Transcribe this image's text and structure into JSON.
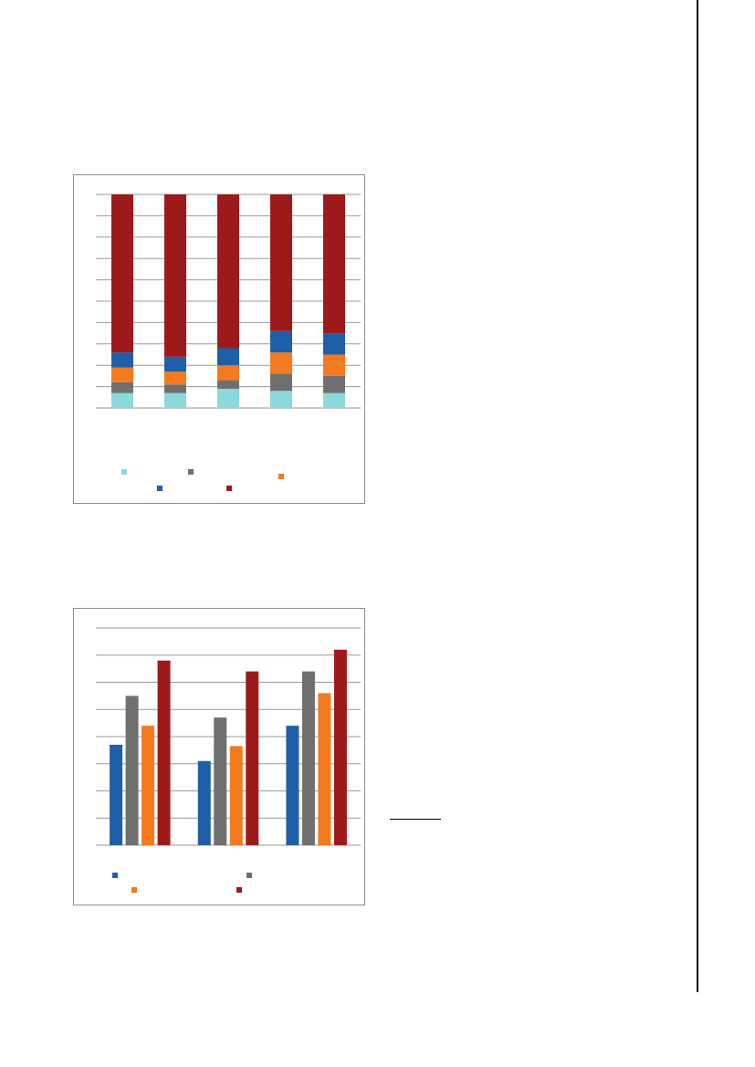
{
  "chart_data": [
    {
      "type": "bar",
      "stacked": true,
      "categories": [
        "",
        "",
        "",
        "",
        ""
      ],
      "series": [
        {
          "values": [
            7,
            7,
            9,
            8,
            7
          ],
          "color": "#8bd9db"
        },
        {
          "values": [
            5,
            4,
            4,
            8,
            8
          ],
          "color": "#6f6f6f"
        },
        {
          "values": [
            7,
            6,
            7,
            10,
            10
          ],
          "color": "#f47a20"
        },
        {
          "values": [
            7,
            7,
            8,
            10,
            10
          ],
          "color": "#1f5fa8"
        },
        {
          "values": [
            74,
            76,
            72,
            64,
            65
          ],
          "color": "#9e1a1a"
        }
      ],
      "ylim": [
        0,
        100
      ],
      "grid": true,
      "legend": "bottom",
      "xlabel": "",
      "ylabel": ""
    },
    {
      "type": "bar",
      "stacked": false,
      "categories": [
        "",
        "",
        ""
      ],
      "series": [
        {
          "values": [
            37,
            31,
            44
          ],
          "color": "#1f5fa8"
        },
        {
          "values": [
            55,
            47,
            64
          ],
          "color": "#6f6f6f"
        },
        {
          "values": [
            44,
            36.5,
            56
          ],
          "color": "#f47a20"
        },
        {
          "values": [
            68,
            64,
            72
          ],
          "color": "#9e1a1a"
        }
      ],
      "ylim": [
        0,
        80
      ],
      "grid": true,
      "legend": "bottom",
      "xlabel": "",
      "ylabel": ""
    }
  ]
}
